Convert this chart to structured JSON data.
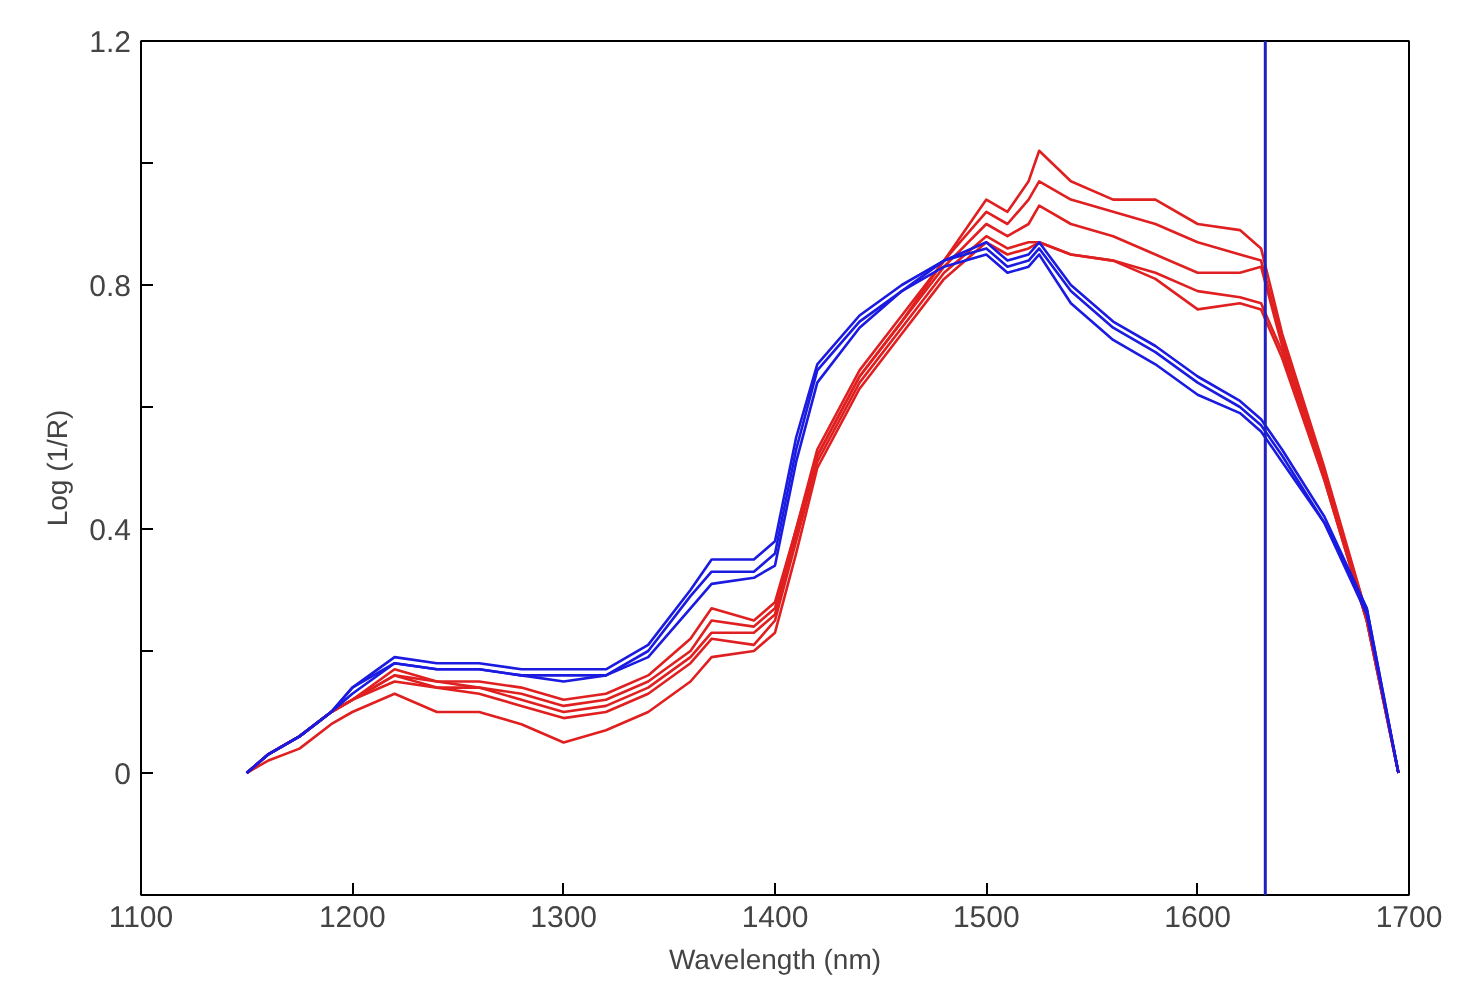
{
  "chart_data": {
    "type": "line",
    "xlabel": "Wavelength (nm)",
    "ylabel": "Log (1/R)",
    "x": [
      1150,
      1160,
      1175,
      1190,
      1200,
      1220,
      1240,
      1260,
      1280,
      1300,
      1320,
      1340,
      1360,
      1370,
      1390,
      1400,
      1410,
      1420,
      1440,
      1460,
      1480,
      1500,
      1510,
      1520,
      1525,
      1540,
      1560,
      1580,
      1600,
      1620,
      1630,
      1640,
      1660,
      1680,
      1695
    ],
    "xlim": [
      1100,
      1700
    ],
    "xticks": [
      1100,
      1200,
      1300,
      1400,
      1500,
      1600,
      1700
    ],
    "ylim": [
      -0.2,
      1.2
    ],
    "yticks": [
      {
        "value": -0.2,
        "label": null
      },
      0,
      {
        "value": 0.2,
        "label": null
      },
      0.4,
      {
        "value": 0.6,
        "label": null
      },
      0.8,
      {
        "value": 1.0,
        "label": null
      },
      1.2
    ],
    "grid": false,
    "marker": "none",
    "line_style": "solid",
    "ref_lines": [
      {
        "axis": "x",
        "value": 1632,
        "label": null,
        "color": "#2020c0"
      }
    ],
    "series": [
      {
        "color": "#e02020",
        "values": [
          0,
          0.03,
          0.06,
          0.1,
          0.12,
          0.17,
          0.15,
          0.15,
          0.14,
          0.12,
          0.13,
          0.16,
          0.22,
          0.27,
          0.25,
          0.28,
          0.4,
          0.52,
          0.65,
          0.74,
          0.84,
          0.94,
          0.92,
          0.97,
          1.02,
          0.97,
          0.94,
          0.94,
          0.9,
          0.89,
          0.86,
          0.72,
          0.5,
          0.26,
          0
        ]
      },
      {
        "color": "#e02020",
        "values": [
          0,
          0.03,
          0.06,
          0.1,
          0.12,
          0.16,
          0.15,
          0.14,
          0.13,
          0.11,
          0.12,
          0.15,
          0.2,
          0.25,
          0.24,
          0.27,
          0.4,
          0.53,
          0.66,
          0.75,
          0.84,
          0.92,
          0.9,
          0.94,
          0.97,
          0.94,
          0.92,
          0.9,
          0.87,
          0.85,
          0.84,
          0.71,
          0.49,
          0.26,
          0
        ]
      },
      {
        "color": "#e02020",
        "values": [
          0,
          0.03,
          0.06,
          0.1,
          0.12,
          0.16,
          0.14,
          0.14,
          0.12,
          0.1,
          0.11,
          0.14,
          0.19,
          0.23,
          0.23,
          0.26,
          0.39,
          0.52,
          0.65,
          0.74,
          0.83,
          0.9,
          0.88,
          0.9,
          0.93,
          0.9,
          0.88,
          0.85,
          0.82,
          0.82,
          0.83,
          0.7,
          0.49,
          0.25,
          0
        ]
      },
      {
        "color": "#e02020",
        "values": [
          0,
          0.03,
          0.06,
          0.1,
          0.12,
          0.15,
          0.14,
          0.13,
          0.11,
          0.09,
          0.1,
          0.13,
          0.18,
          0.22,
          0.21,
          0.25,
          0.38,
          0.51,
          0.64,
          0.73,
          0.82,
          0.88,
          0.86,
          0.87,
          0.87,
          0.85,
          0.84,
          0.81,
          0.76,
          0.77,
          0.76,
          0.68,
          0.48,
          0.25,
          0
        ]
      },
      {
        "color": "#e02020",
        "values": [
          0,
          0.02,
          0.04,
          0.08,
          0.1,
          0.13,
          0.1,
          0.1,
          0.08,
          0.05,
          0.07,
          0.1,
          0.15,
          0.19,
          0.2,
          0.23,
          0.36,
          0.5,
          0.63,
          0.72,
          0.81,
          0.87,
          0.85,
          0.86,
          0.87,
          0.85,
          0.84,
          0.82,
          0.79,
          0.78,
          0.77,
          0.69,
          0.48,
          0.25,
          0
        ]
      },
      {
        "color": "#1a1ae0",
        "values": [
          0,
          0.03,
          0.06,
          0.1,
          0.14,
          0.19,
          0.18,
          0.18,
          0.17,
          0.17,
          0.17,
          0.21,
          0.3,
          0.35,
          0.35,
          0.38,
          0.55,
          0.67,
          0.75,
          0.8,
          0.84,
          0.87,
          0.84,
          0.85,
          0.87,
          0.8,
          0.74,
          0.7,
          0.65,
          0.61,
          0.58,
          0.53,
          0.42,
          0.27,
          0
        ]
      },
      {
        "color": "#1a1ae0",
        "values": [
          0,
          0.03,
          0.06,
          0.1,
          0.14,
          0.18,
          0.17,
          0.17,
          0.16,
          0.16,
          0.16,
          0.2,
          0.29,
          0.33,
          0.33,
          0.36,
          0.53,
          0.66,
          0.74,
          0.79,
          0.84,
          0.86,
          0.83,
          0.84,
          0.86,
          0.79,
          0.73,
          0.69,
          0.64,
          0.6,
          0.57,
          0.52,
          0.41,
          0.27,
          0
        ]
      },
      {
        "color": "#1a1ae0",
        "values": [
          0,
          0.03,
          0.06,
          0.1,
          0.13,
          0.18,
          0.17,
          0.17,
          0.16,
          0.15,
          0.16,
          0.19,
          0.27,
          0.31,
          0.32,
          0.34,
          0.51,
          0.64,
          0.73,
          0.79,
          0.83,
          0.85,
          0.82,
          0.83,
          0.85,
          0.77,
          0.71,
          0.67,
          0.62,
          0.59,
          0.56,
          0.51,
          0.41,
          0.26,
          0
        ]
      }
    ]
  }
}
